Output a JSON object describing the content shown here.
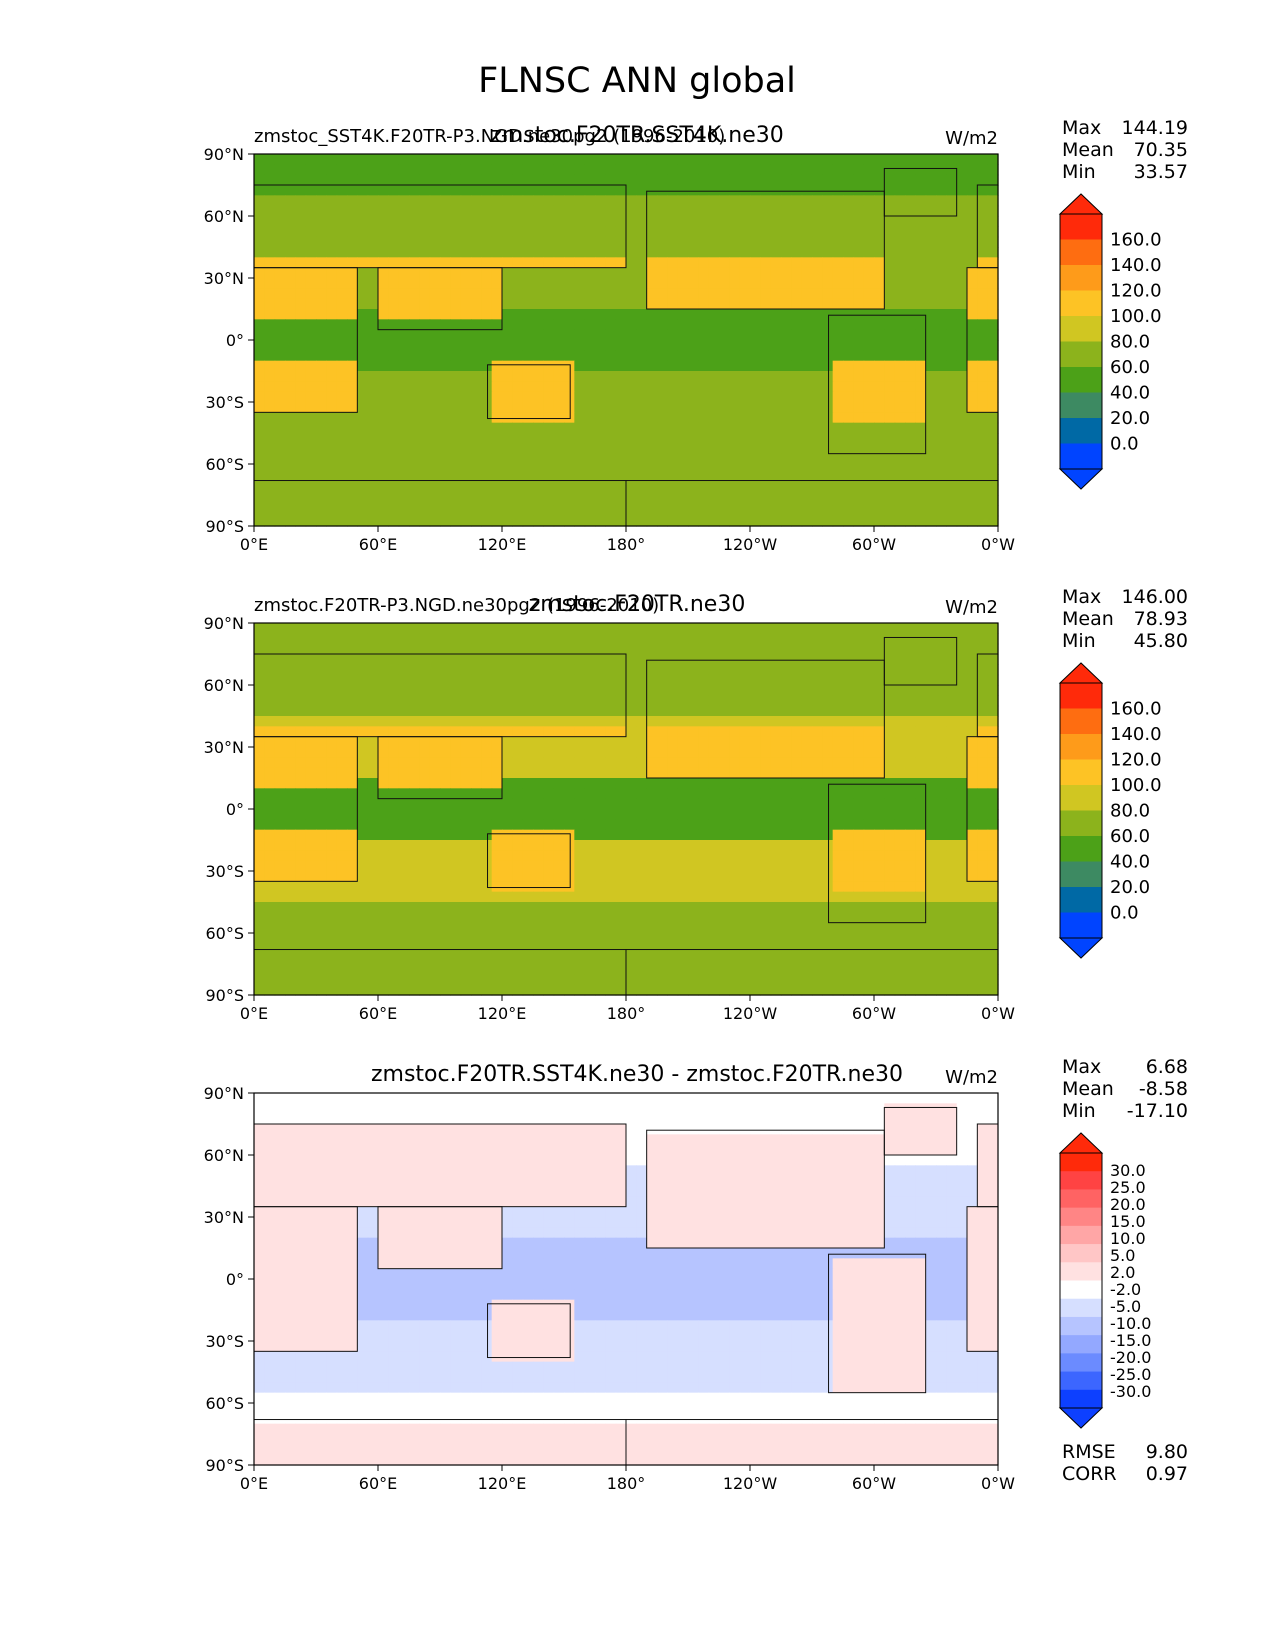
{
  "title": "FLNSC ANN global",
  "colors": {
    "main": [
      "#0044ff",
      "#0069a5",
      "#3d8a62",
      "#4ca118",
      "#8cb31c",
      "#d0c622",
      "#fdc325",
      "#fe9b1a",
      "#fe6d11",
      "#ff2a0a"
    ],
    "main_low": "#0044ff",
    "main_high": "#ff2a0a",
    "diff": [
      "#0d40ff",
      "#3c66ff",
      "#6b8bff",
      "#93a8ff",
      "#b6c4ff",
      "#d6dfff",
      "#ffffff",
      "#ffe1e1",
      "#ffc6c6",
      "#ffa6a6",
      "#ff8585",
      "#ff6363",
      "#ff4343",
      "#ff2a0a"
    ],
    "diff_low": "#0d40ff",
    "diff_high": "#ff2a0a",
    "coast": "#111111"
  },
  "chart_data": [
    {
      "type": "contour-map",
      "title_left": "zmstoc_SST4K.F20TR-P3.NGD.ne30pg2 (1996-2010)",
      "title_center": "zmstoc.F20TR.SST4K.ne30",
      "units": "W/m2",
      "stats": [
        {
          "label": "Max",
          "value": "144.19"
        },
        {
          "label": "Mean",
          "value": "70.35"
        },
        {
          "label": "Min",
          "value": "33.57"
        }
      ],
      "colorbar_levels": [
        "160.0",
        "140.0",
        "120.0",
        "100.0",
        "80.0",
        "60.0",
        "40.0",
        "20.0",
        "0.0"
      ],
      "colorbar": "main",
      "field": "test",
      "lat_ticks": [
        "90°N",
        "60°N",
        "30°N",
        "0°",
        "30°S",
        "60°S",
        "90°S"
      ],
      "lon_ticks": [
        "0°E",
        "60°E",
        "120°E",
        "180°",
        "120°W",
        "60°W",
        "0°W"
      ]
    },
    {
      "type": "contour-map",
      "title_left": "zmstoc.F20TR-P3.NGD.ne30pg2 (1996-2010)",
      "title_center": "zmstoc.F20TR.ne30",
      "units": "W/m2",
      "stats": [
        {
          "label": "Max",
          "value": "146.00"
        },
        {
          "label": "Mean",
          "value": "78.93"
        },
        {
          "label": "Min",
          "value": "45.80"
        }
      ],
      "colorbar_levels": [
        "160.0",
        "140.0",
        "120.0",
        "100.0",
        "80.0",
        "60.0",
        "40.0",
        "20.0",
        "0.0"
      ],
      "colorbar": "main",
      "field": "ref",
      "lat_ticks": [
        "90°N",
        "60°N",
        "30°N",
        "0°",
        "30°S",
        "60°S",
        "90°S"
      ],
      "lon_ticks": [
        "0°E",
        "60°E",
        "120°E",
        "180°",
        "120°W",
        "60°W",
        "0°W"
      ]
    },
    {
      "type": "contour-map",
      "title_left": "",
      "title_center": "zmstoc.F20TR.SST4K.ne30 - zmstoc.F20TR.ne30",
      "units": "W/m2",
      "stats": [
        {
          "label": "Max",
          "value": "6.68"
        },
        {
          "label": "Mean",
          "value": "-8.58"
        },
        {
          "label": "Min",
          "value": "-17.10"
        }
      ],
      "colorbar_levels": [
        "30.0",
        "25.0",
        "20.0",
        "15.0",
        "10.0",
        "5.0",
        "2.0",
        "-2.0",
        "-5.0",
        "-10.0",
        "-15.0",
        "-20.0",
        "-25.0",
        "-30.0"
      ],
      "colorbar": "diff",
      "field": "diff",
      "lat_ticks": [
        "90°N",
        "60°N",
        "30°N",
        "0°",
        "30°S",
        "60°S",
        "90°S"
      ],
      "lon_ticks": [
        "0°E",
        "60°E",
        "120°E",
        "180°",
        "120°W",
        "60°W",
        "0°W"
      ],
      "extra_stats": [
        {
          "label": "RMSE",
          "value": "9.80"
        },
        {
          "label": "CORR",
          "value": "0.97"
        }
      ]
    }
  ]
}
